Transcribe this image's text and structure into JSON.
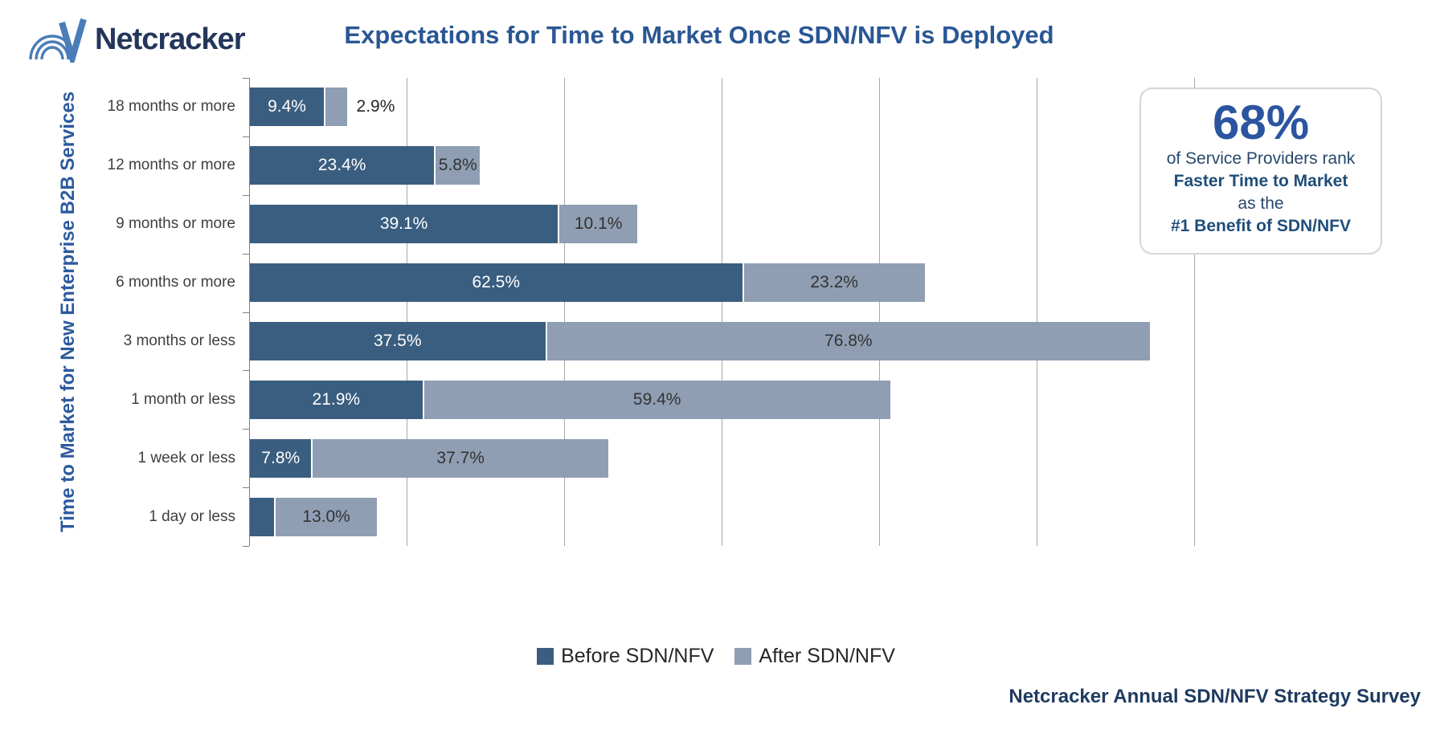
{
  "header": {
    "logo_text": "Netcracker",
    "title": "Expectations for Time to Market Once SDN/NFV is Deployed"
  },
  "callout": {
    "headline": "68%",
    "line1": "of Service Providers rank",
    "line2": "Faster Time to Market",
    "line3": "as the",
    "line4": "#1 Benefit of SDN/NFV"
  },
  "legend": {
    "before_label": "Before SDN/NFV",
    "after_label": "After SDN/NFV"
  },
  "footer": {
    "source": "Netcracker Annual SDN/NFV Strategy Survey"
  },
  "colors": {
    "series_before": "#3A5E80",
    "series_after": "#8F9EB3",
    "title_text": "#2A5794",
    "axis_label_text": "#2D5A9E",
    "category_text": "#3F3F3F",
    "gridline": "#A8A8A8",
    "axis_line": "#7F7F7F",
    "label_on_dark": "#FFFFFF",
    "label_on_light": "#333333",
    "callout_number": "#2B55A0",
    "footer_text": "#1E3A5F",
    "logo_mark": "#4A7CB8",
    "logo_text": "#24365B"
  },
  "chart_data": {
    "type": "bar",
    "orientation": "horizontal-stacked",
    "title": "Expectations for Time to Market Once SDN/NFV is Deployed",
    "xlabel": "",
    "ylabel": "Time to Market for New Enterprise B2B Services",
    "xlim": [
      0,
      120
    ],
    "gridline_step": 20,
    "grid": true,
    "legend_position": "bottom-center",
    "categories": [
      "18 months or more",
      "12 months or more",
      "9 months or more",
      "6 months or more",
      "3 months or less",
      "1 month or less",
      "1 week or less",
      "1 day or less"
    ],
    "series": [
      {
        "name": "Before SDN/NFV",
        "color": "#3A5E80",
        "values": [
          9.4,
          23.4,
          39.1,
          62.5,
          37.5,
          21.9,
          7.8,
          3.1
        ],
        "labels": [
          "9.4%",
          "23.4%",
          "39.1%",
          "62.5%",
          "37.5%",
          "21.9%",
          "7.8%",
          ""
        ],
        "label_placement": [
          "inside",
          "inside",
          "inside",
          "inside",
          "inside",
          "inside",
          "inside",
          "none"
        ]
      },
      {
        "name": "After SDN/NFV",
        "color": "#8F9EB3",
        "values": [
          2.9,
          5.8,
          10.1,
          23.2,
          76.8,
          59.4,
          37.7,
          13.0
        ],
        "labels": [
          "2.9%",
          "5.8%",
          "10.1%",
          "23.2%",
          "76.8%",
          "59.4%",
          "37.7%",
          "13.0%"
        ],
        "label_placement": [
          "outside",
          "inside",
          "inside",
          "inside",
          "inside",
          "inside",
          "inside",
          "inside"
        ]
      }
    ]
  }
}
